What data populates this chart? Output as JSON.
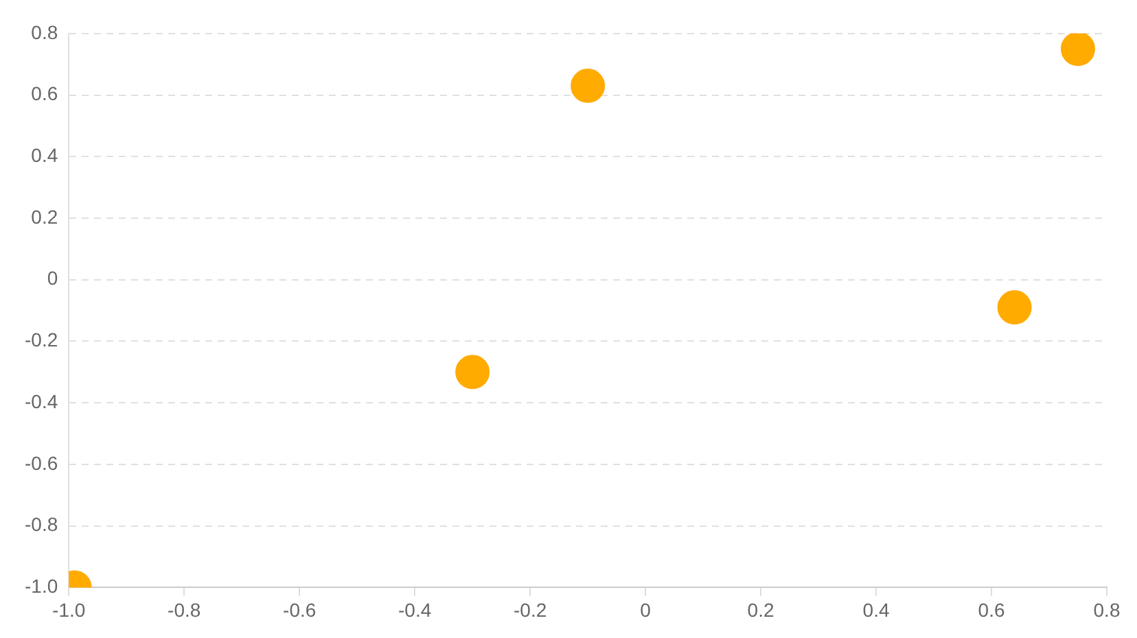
{
  "chart_data": {
    "type": "scatter",
    "x": [
      -0.99,
      -0.3,
      -0.1,
      0.64,
      0.75
    ],
    "series": [
      {
        "color": "#ffab00",
        "values": [
          -1.0,
          -0.3,
          0.63,
          -0.09,
          0.75
        ]
      }
    ],
    "xlim": [
      -1.0,
      0.8
    ],
    "xticks": [
      {
        "value": -1.0,
        "label": "-1.0"
      },
      -0.8,
      -0.6,
      -0.4,
      -0.2,
      0,
      0.2,
      0.4,
      0.6,
      0.8
    ],
    "ylim": [
      -1.0,
      0.8
    ],
    "yticks": [
      {
        "value": -1.0,
        "label": "-1.0"
      },
      -0.8,
      -0.6,
      -0.4,
      -0.2,
      0,
      0.2,
      0.4,
      0.6,
      0.8
    ],
    "grid": "y",
    "legend": false,
    "marker": "circle"
  }
}
